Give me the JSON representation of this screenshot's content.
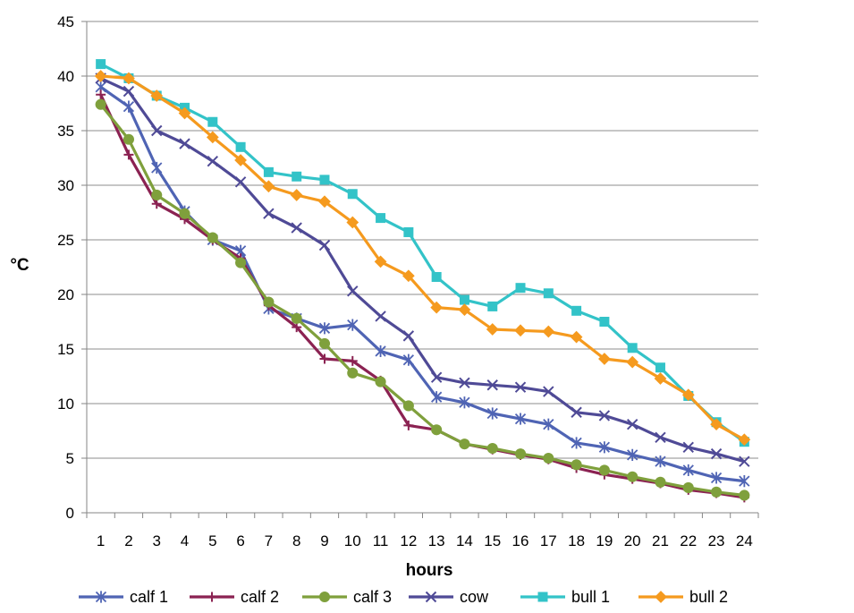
{
  "chart_data": {
    "type": "line",
    "xlabel": "hours",
    "ylabel": "°C",
    "categories": [
      "1",
      "2",
      "3",
      "4",
      "5",
      "6",
      "7",
      "8",
      "9",
      "10",
      "11",
      "12",
      "13",
      "14",
      "15",
      "16",
      "17",
      "18",
      "19",
      "20",
      "21",
      "22",
      "23",
      "24"
    ],
    "ylim": [
      0,
      45
    ],
    "yticks": [
      0,
      5,
      10,
      15,
      20,
      25,
      30,
      35,
      40,
      45
    ],
    "grid": "horizontal",
    "legend": "bottom",
    "series": [
      {
        "name": "calf 1",
        "color": "#4F64B4",
        "marker": "star",
        "values": [
          39.0,
          37.2,
          31.6,
          27.6,
          25.0,
          24.0,
          18.7,
          17.8,
          16.9,
          17.2,
          14.8,
          14.0,
          10.6,
          10.1,
          9.1,
          8.6,
          8.1,
          6.4,
          6.0,
          5.3,
          4.7,
          3.9,
          3.2,
          2.9
        ]
      },
      {
        "name": "calf 2",
        "color": "#8B2252",
        "marker": "plus",
        "values": [
          38.3,
          32.8,
          28.3,
          26.9,
          25.0,
          23.3,
          19.0,
          17.0,
          14.1,
          13.9,
          12.1,
          8.0,
          7.6,
          6.3,
          5.8,
          5.3,
          4.9,
          4.1,
          3.5,
          3.1,
          2.7,
          2.1,
          1.8,
          1.4
        ]
      },
      {
        "name": "calf 3",
        "color": "#7FA03C",
        "marker": "circle",
        "values": [
          37.4,
          34.2,
          29.1,
          27.4,
          25.2,
          22.9,
          19.3,
          17.8,
          15.5,
          12.8,
          12.0,
          9.8,
          7.6,
          6.3,
          5.9,
          5.4,
          5.0,
          4.4,
          3.9,
          3.3,
          2.8,
          2.3,
          1.9,
          1.6
        ]
      },
      {
        "name": "cow",
        "color": "#4F4A96",
        "marker": "x",
        "values": [
          39.8,
          38.6,
          35.0,
          33.8,
          32.2,
          30.3,
          27.4,
          26.1,
          24.5,
          20.3,
          18.0,
          16.2,
          12.4,
          11.9,
          11.7,
          11.5,
          11.1,
          9.2,
          8.9,
          8.1,
          6.9,
          6.0,
          5.4,
          4.7
        ]
      },
      {
        "name": "bull 1",
        "color": "#33C3C8",
        "marker": "square",
        "values": [
          41.1,
          39.8,
          38.2,
          37.1,
          35.8,
          33.5,
          31.2,
          30.8,
          30.5,
          29.2,
          27.0,
          25.7,
          21.6,
          19.5,
          18.9,
          20.6,
          20.1,
          18.5,
          17.5,
          15.1,
          13.3,
          10.7,
          8.3,
          6.5
        ]
      },
      {
        "name": "bull 2",
        "color": "#F59A1E",
        "marker": "diamond",
        "values": [
          40.0,
          39.8,
          38.2,
          36.6,
          34.4,
          32.3,
          29.9,
          29.1,
          28.5,
          26.6,
          23.0,
          21.7,
          18.8,
          18.6,
          16.8,
          16.7,
          16.6,
          16.1,
          14.1,
          13.8,
          12.3,
          10.8,
          8.1,
          6.7
        ]
      }
    ]
  }
}
